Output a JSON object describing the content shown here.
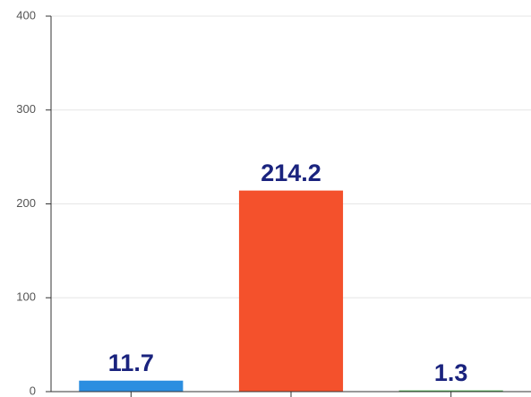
{
  "chart_data": {
    "type": "bar",
    "categories": [
      null,
      null,
      null
    ],
    "values": [
      11.7,
      214.2,
      1.3
    ],
    "colors": [
      "#2b8ee0",
      "#f4512c",
      "#4caf50"
    ],
    "ylim": [
      0,
      400
    ],
    "yticks": [
      0,
      100,
      200,
      300,
      400
    ],
    "grid": true
  }
}
